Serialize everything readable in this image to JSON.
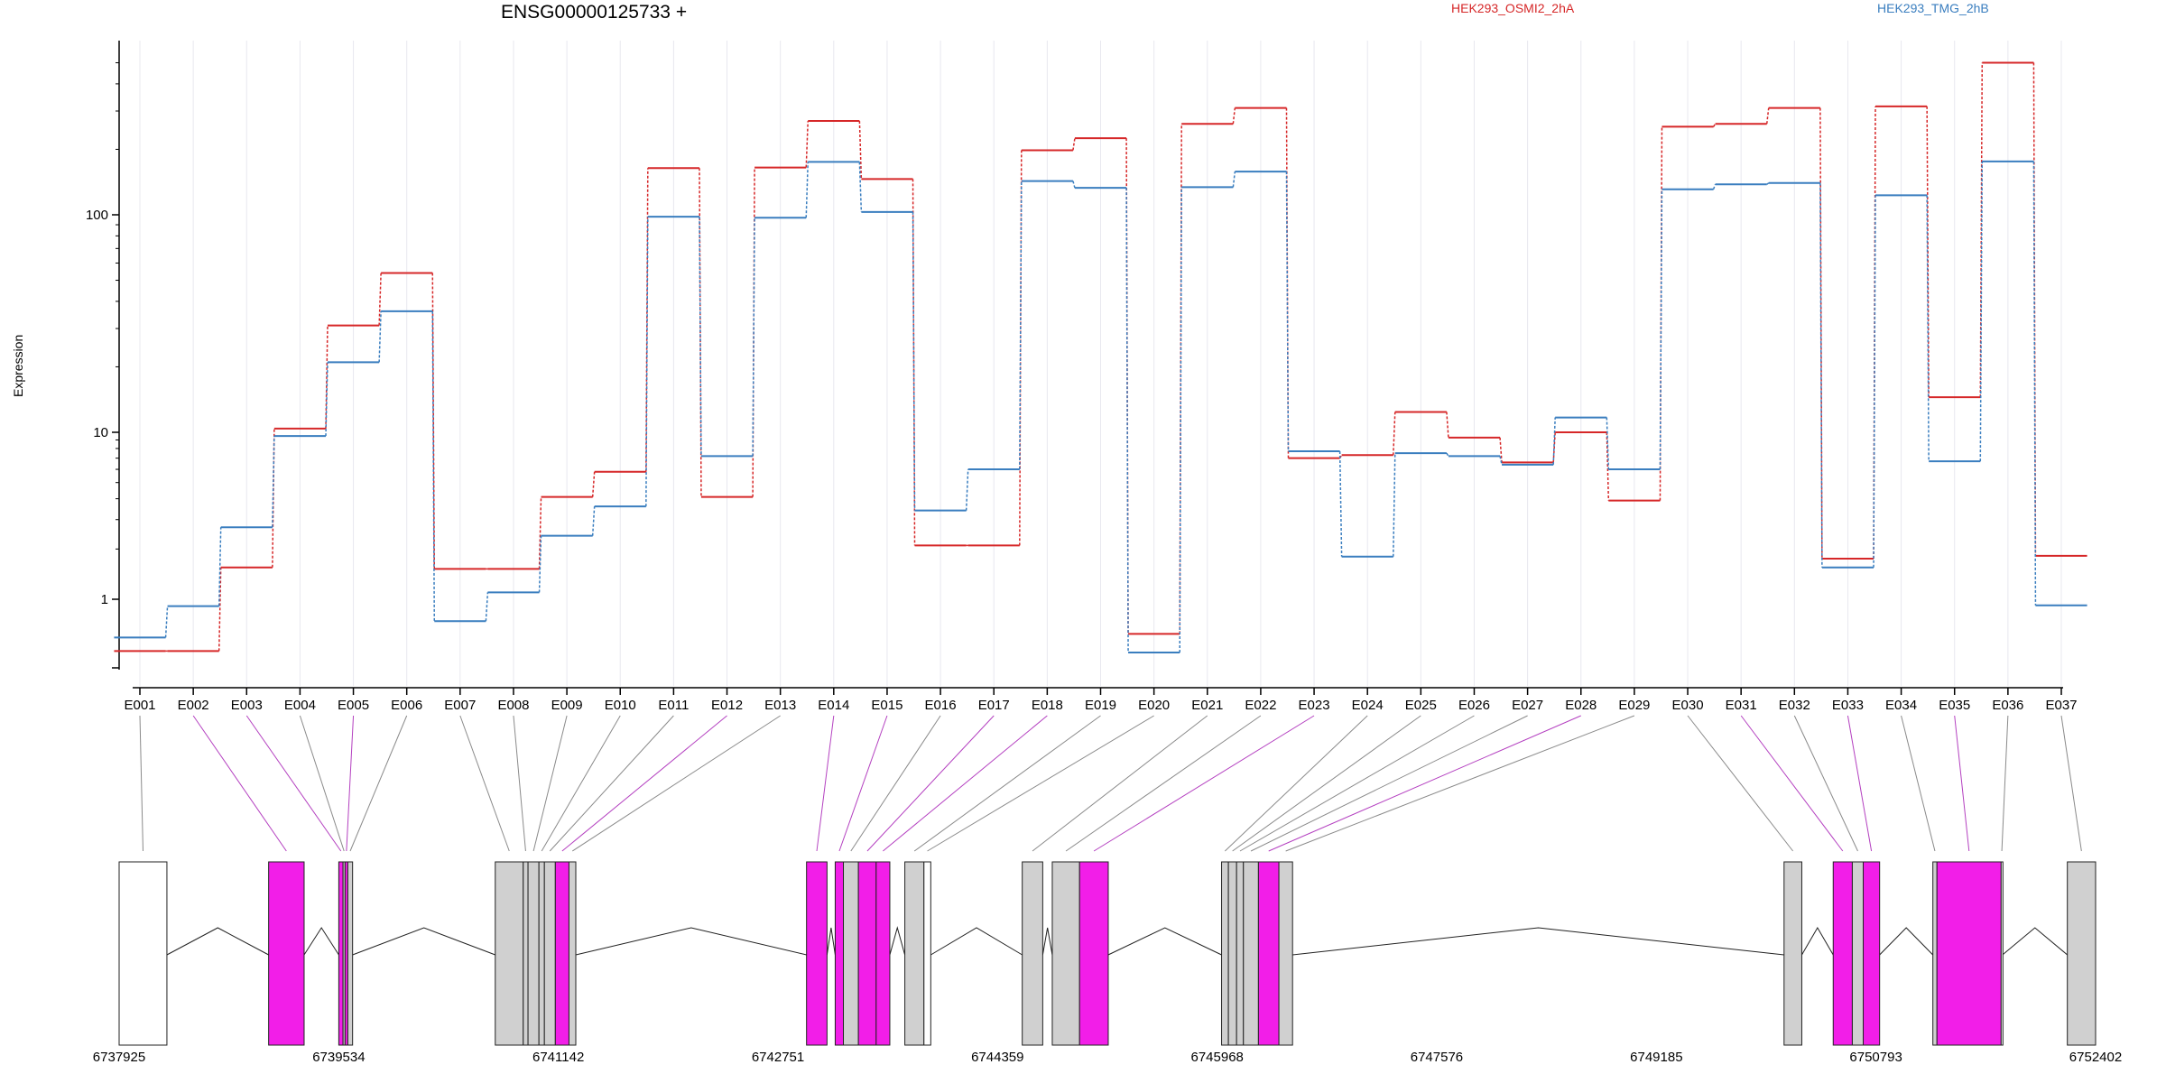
{
  "header": {
    "title": "ENSG00000125733 +",
    "ylabel": "Expression"
  },
  "chart_data": {
    "type": "line",
    "scale": "log",
    "ylabel": "Expression",
    "y_ticks": [
      1,
      10,
      100
    ],
    "y_tick_labels": [
      "1",
      "10",
      "100"
    ],
    "ylim": [
      0.38,
      650
    ],
    "grid": "vertical",
    "legend_placement": "top",
    "categories": [
      "E001",
      "E002",
      "E003",
      "E004",
      "E005",
      "E006",
      "E007",
      "E008",
      "E009",
      "E010",
      "E011",
      "E012",
      "E013",
      "E014",
      "E015",
      "E016",
      "E017",
      "E018",
      "E019",
      "E020",
      "E021",
      "E022",
      "E023",
      "E024",
      "E025",
      "E026",
      "E027",
      "E028",
      "E029",
      "E030",
      "E031",
      "E032",
      "E033",
      "E034",
      "E035",
      "E036",
      "E037"
    ],
    "series": [
      {
        "name": "HEK293_OSMI2_2hA",
        "color": "#d62728",
        "values": [
          0.49,
          0.49,
          1.55,
          10.4,
          31,
          54,
          1.52,
          1.52,
          4.1,
          5.8,
          164,
          4.1,
          165,
          270,
          146,
          2.1,
          2.1,
          198,
          225,
          0.62,
          262,
          310,
          7.0,
          7.3,
          12.4,
          9.3,
          6.6,
          10.0,
          3.9,
          254,
          262,
          310,
          1.75,
          315,
          14.5,
          500,
          1.82
        ]
      },
      {
        "name": "HEK293_TMG_2hB",
        "color": "#3a7ebf",
        "values": [
          0.59,
          0.91,
          2.7,
          9.5,
          21,
          36,
          0.74,
          1.1,
          2.4,
          3.6,
          98,
          7.2,
          97,
          175,
          103,
          3.4,
          6.0,
          143,
          133,
          0.48,
          134,
          158,
          7.7,
          1.8,
          7.5,
          7.2,
          6.4,
          11.7,
          6.0,
          131,
          138,
          140,
          1.55,
          123,
          6.7,
          176,
          0.92
        ]
      }
    ],
    "gene_model": {
      "coord_ticks": [
        6737925,
        6739534,
        6741142,
        6742751,
        6744359,
        6745968,
        6747576,
        6749185,
        6750793,
        6752402
      ],
      "exons": [
        {
          "id": "E001",
          "start": 6737925,
          "end": 6738275,
          "color": "#ffffff"
        },
        {
          "id": "E002",
          "start": 6739020,
          "end": 6739280,
          "color": "#f21ee8"
        },
        {
          "id": "E003",
          "start": 6739534,
          "end": 6739565,
          "color": "#f21ee8"
        },
        {
          "id": "E004",
          "start": 6739565,
          "end": 6739580,
          "color": "#d0d0d0"
        },
        {
          "id": "E005",
          "start": 6739580,
          "end": 6739600,
          "color": "#f21ee8"
        },
        {
          "id": "E006",
          "start": 6739600,
          "end": 6739635,
          "color": "#d0d0d0"
        },
        {
          "id": "E007",
          "start": 6740680,
          "end": 6740885,
          "color": "#d0d0d0"
        },
        {
          "id": "E008",
          "start": 6740885,
          "end": 6740920,
          "color": "#d0d0d0"
        },
        {
          "id": "E009",
          "start": 6740920,
          "end": 6741000,
          "color": "#d0d0d0"
        },
        {
          "id": "E010",
          "start": 6741000,
          "end": 6741040,
          "color": "#d0d0d0"
        },
        {
          "id": "E011",
          "start": 6741040,
          "end": 6741120,
          "color": "#d0d0d0"
        },
        {
          "id": "E012",
          "start": 6741120,
          "end": 6741220,
          "color": "#f21ee8"
        },
        {
          "id": "E013",
          "start": 6741220,
          "end": 6741270,
          "color": "#d0d0d0"
        },
        {
          "id": "E014",
          "start": 6742960,
          "end": 6743110,
          "color": "#f21ee8"
        },
        {
          "id": "E015",
          "start": 6743170,
          "end": 6743230,
          "color": "#f21ee8"
        },
        {
          "id": "E016",
          "start": 6743230,
          "end": 6743340,
          "color": "#d0d0d0"
        },
        {
          "id": "E017",
          "start": 6743340,
          "end": 6743470,
          "color": "#f21ee8"
        },
        {
          "id": "E018",
          "start": 6743470,
          "end": 6743570,
          "color": "#f21ee8"
        },
        {
          "id": "E019",
          "start": 6743680,
          "end": 6743820,
          "color": "#d0d0d0"
        },
        {
          "id": "E020",
          "start": 6743820,
          "end": 6743870,
          "color": "#ffffff"
        },
        {
          "id": "E021",
          "start": 6744540,
          "end": 6744690,
          "color": "#d0d0d0"
        },
        {
          "id": "E022",
          "start": 6744760,
          "end": 6744960,
          "color": "#d0d0d0"
        },
        {
          "id": "E023",
          "start": 6744960,
          "end": 6745170,
          "color": "#f21ee8"
        },
        {
          "id": "E024",
          "start": 6746000,
          "end": 6746050,
          "color": "#d0d0d0"
        },
        {
          "id": "E025",
          "start": 6746050,
          "end": 6746110,
          "color": "#d0d0d0"
        },
        {
          "id": "E026",
          "start": 6746110,
          "end": 6746160,
          "color": "#d0d0d0"
        },
        {
          "id": "E027",
          "start": 6746160,
          "end": 6746270,
          "color": "#d0d0d0"
        },
        {
          "id": "E028",
          "start": 6746270,
          "end": 6746420,
          "color": "#f21ee8"
        },
        {
          "id": "E029",
          "start": 6746420,
          "end": 6746520,
          "color": "#d0d0d0"
        },
        {
          "id": "E030",
          "start": 6750120,
          "end": 6750250,
          "color": "#d0d0d0"
        },
        {
          "id": "E031",
          "start": 6750480,
          "end": 6750620,
          "color": "#f21ee8"
        },
        {
          "id": "E032",
          "start": 6750620,
          "end": 6750700,
          "color": "#d0d0d0"
        },
        {
          "id": "E033",
          "start": 6750700,
          "end": 6750820,
          "color": "#f21ee8"
        },
        {
          "id": "E034",
          "start": 6751210,
          "end": 6751240,
          "color": "#d0d0d0"
        },
        {
          "id": "E035",
          "start": 6751240,
          "end": 6751710,
          "color": "#f21ee8"
        },
        {
          "id": "E036",
          "start": 6751710,
          "end": 6751720,
          "color": "#ffffff"
        },
        {
          "id": "E037",
          "start": 6752195,
          "end": 6752402,
          "color": "#d0d0d0"
        }
      ]
    }
  }
}
